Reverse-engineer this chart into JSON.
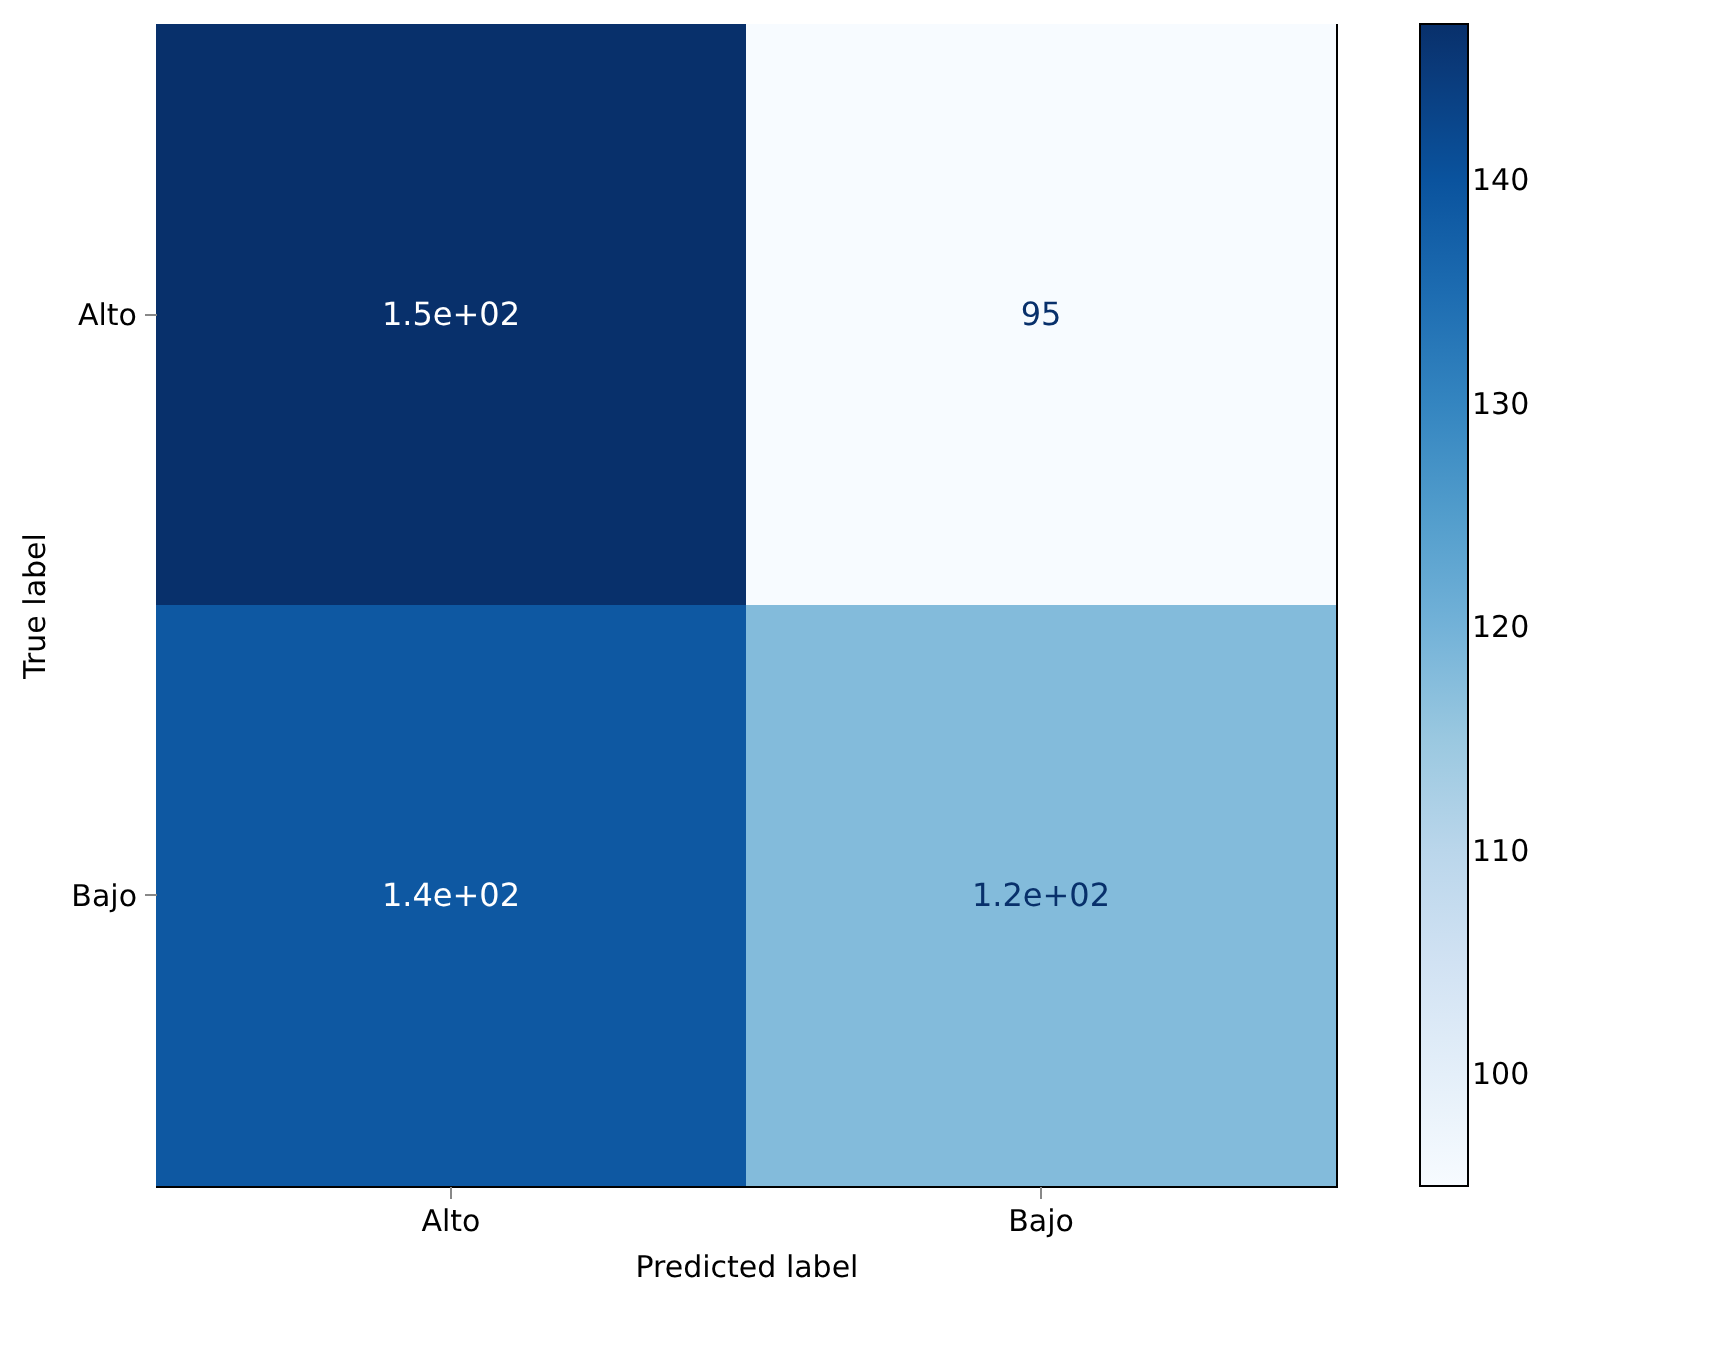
{
  "chart_data": {
    "type": "heatmap",
    "xlabel": "Predicted label",
    "ylabel": "True label",
    "categories": [
      "Alto",
      "Bajo"
    ],
    "y_categories": [
      "Alto",
      "Bajo"
    ],
    "cells": [
      [
        147,
        95
      ],
      [
        139,
        118
      ]
    ],
    "cell_labels": [
      [
        "1.5e+02",
        "95"
      ],
      [
        "1.4e+02",
        "1.2e+02"
      ]
    ],
    "clim": [
      95,
      147
    ],
    "cticks": [
      100,
      110,
      120,
      130,
      140
    ]
  }
}
